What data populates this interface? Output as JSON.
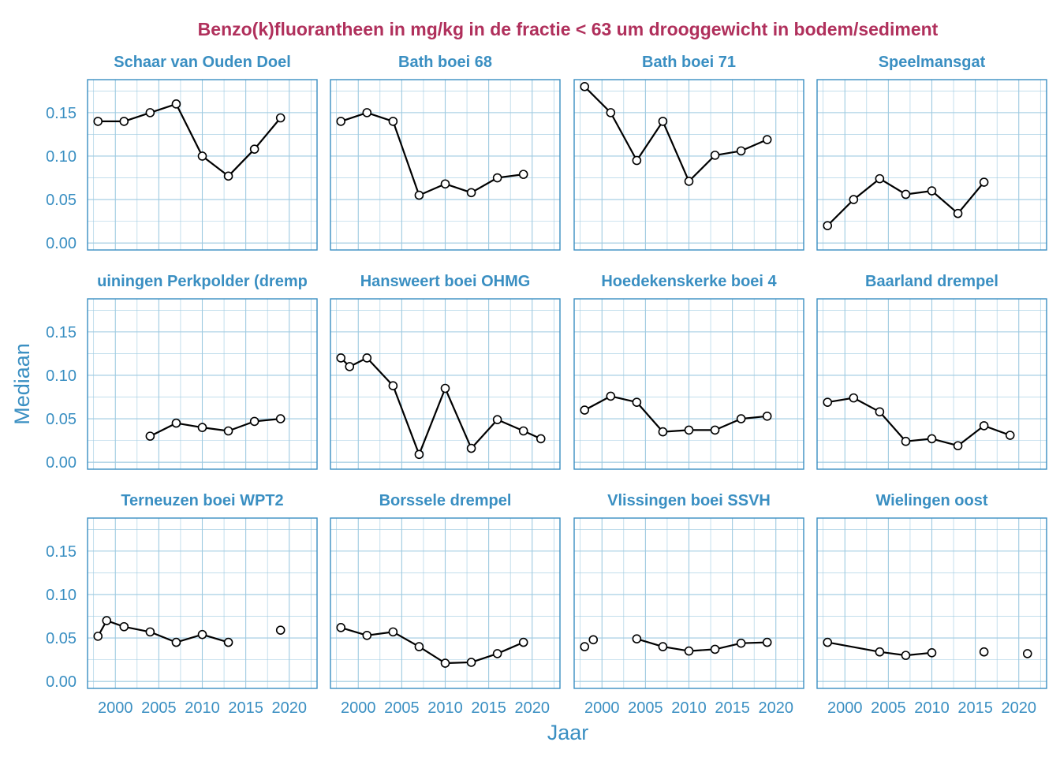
{
  "colors": {
    "title": "#B0305C",
    "accent": "#3A8FC2",
    "panel_border": "#3A8FC2",
    "grid": "#9ECAE1",
    "line": "#000000",
    "point_fill": "#ffffff"
  },
  "chart_data": {
    "type": "line",
    "layout": "facet-grid 3x4",
    "title": "Benzo(k)fluorantheen in mg/kg in de fractie < 63 um drooggewicht in bodem/sediment",
    "xlabel": "Jaar",
    "ylabel": "Mediaan",
    "xlim": [
      1996.8,
      2023.2
    ],
    "ylim": [
      -0.008,
      0.188
    ],
    "x_ticks": [
      2000,
      2005,
      2010,
      2015,
      2020
    ],
    "x_tick_labels": [
      "2000",
      "2005",
      "2010",
      "2015",
      "2020"
    ],
    "y_ticks": [
      0.0,
      0.05,
      0.1,
      0.15
    ],
    "y_tick_labels": [
      "0.00",
      "0.05",
      "0.10",
      "0.15"
    ],
    "grid": true,
    "panels": [
      {
        "title": "Schaar van Ouden Doel",
        "points": [
          [
            1998,
            0.14
          ],
          [
            2001,
            0.14
          ],
          [
            2004,
            0.15
          ],
          [
            2007,
            0.16
          ],
          [
            2010,
            0.1
          ],
          [
            2013,
            0.077
          ],
          [
            2016,
            0.108
          ],
          [
            2019,
            0.144
          ]
        ],
        "segments": [
          [
            0,
            7
          ]
        ]
      },
      {
        "title": "Bath boei 68",
        "points": [
          [
            1998,
            0.14
          ],
          [
            2001,
            0.15
          ],
          [
            2004,
            0.14
          ],
          [
            2007,
            0.055
          ],
          [
            2010,
            0.068
          ],
          [
            2013,
            0.058
          ],
          [
            2016,
            0.075
          ],
          [
            2019,
            0.079
          ]
        ],
        "segments": [
          [
            0,
            7
          ]
        ]
      },
      {
        "title": "Bath boei 71",
        "points": [
          [
            1998,
            0.18
          ],
          [
            2001,
            0.15
          ],
          [
            2004,
            0.095
          ],
          [
            2007,
            0.14
          ],
          [
            2010,
            0.071
          ],
          [
            2013,
            0.101
          ],
          [
            2016,
            0.106
          ],
          [
            2019,
            0.119
          ]
        ],
        "segments": [
          [
            0,
            7
          ]
        ]
      },
      {
        "title": "Speelmansgat",
        "points": [
          [
            1998,
            0.02
          ],
          [
            2001,
            0.05
          ],
          [
            2004,
            0.074
          ],
          [
            2007,
            0.056
          ],
          [
            2010,
            0.06
          ],
          [
            2013,
            0.034
          ],
          [
            2016,
            0.07
          ]
        ],
        "segments": [
          [
            0,
            6
          ]
        ]
      },
      {
        "title": "Hansweert boei OHMG",
        "points": [
          [
            1998,
            0.12
          ],
          [
            1999,
            0.11
          ],
          [
            2001,
            0.12
          ],
          [
            2004,
            0.088
          ],
          [
            2007,
            0.009
          ],
          [
            2010,
            0.085
          ],
          [
            2013,
            0.016
          ],
          [
            2016,
            0.049
          ],
          [
            2019,
            0.036
          ],
          [
            2021,
            0.027
          ]
        ],
        "segments": [
          [
            0,
            9
          ]
        ]
      },
      {
        "title": "Hoedekenskerke boei 4",
        "points": [
          [
            1998,
            0.06
          ],
          [
            2001,
            0.076
          ],
          [
            2004,
            0.069
          ],
          [
            2007,
            0.035
          ],
          [
            2010,
            0.037
          ],
          [
            2013,
            0.037
          ],
          [
            2016,
            0.05
          ],
          [
            2019,
            0.053
          ]
        ],
        "segments": [
          [
            0,
            7
          ]
        ]
      },
      {
        "title": "Baarland drempel",
        "points": [
          [
            1998,
            0.069
          ],
          [
            2001,
            0.074
          ],
          [
            2004,
            0.058
          ],
          [
            2007,
            0.024
          ],
          [
            2010,
            0.027
          ],
          [
            2013,
            0.019
          ],
          [
            2016,
            0.042
          ],
          [
            2019,
            0.031
          ]
        ],
        "segments": [
          [
            0,
            7
          ]
        ]
      },
      {
        "title": "Terneuzen boei WPT2",
        "points": [
          [
            1998,
            0.052
          ],
          [
            1999,
            0.07
          ],
          [
            2001,
            0.063
          ],
          [
            2004,
            0.057
          ],
          [
            2007,
            0.045
          ],
          [
            2010,
            0.054
          ],
          [
            2013,
            0.045
          ],
          [
            2019,
            0.059
          ]
        ],
        "segments": [
          [
            0,
            6
          ]
        ]
      },
      {
        "title": "Borssele drempel",
        "points": [
          [
            1998,
            0.062
          ],
          [
            2001,
            0.053
          ],
          [
            2004,
            0.057
          ],
          [
            2007,
            0.04
          ],
          [
            2010,
            0.021
          ],
          [
            2013,
            0.022
          ],
          [
            2016,
            0.032
          ],
          [
            2019,
            0.045
          ]
        ],
        "segments": [
          [
            0,
            7
          ]
        ]
      },
      {
        "title": "Vlissingen boei SSVH",
        "points": [
          [
            1998,
            0.04
          ],
          [
            1999,
            0.048
          ],
          [
            2004,
            0.049
          ],
          [
            2007,
            0.04
          ],
          [
            2010,
            0.035
          ],
          [
            2013,
            0.037
          ],
          [
            2016,
            0.044
          ],
          [
            2019,
            0.045
          ]
        ],
        "segments": [
          [
            2,
            7
          ]
        ]
      },
      {
        "title": "Wielingen oost",
        "points": [
          [
            1998,
            0.045
          ],
          [
            2004,
            0.034
          ],
          [
            2007,
            0.03
          ],
          [
            2010,
            0.033
          ],
          [
            2016,
            0.034
          ],
          [
            2021,
            0.032
          ]
        ],
        "segments": [
          [
            0,
            3
          ]
        ]
      }
    ],
    "clipped_panel": {
      "title_visible": "uiningen Perkpolder (dremp",
      "points": [
        [
          2004,
          0.03
        ],
        [
          2007,
          0.045
        ],
        [
          2010,
          0.04
        ],
        [
          2013,
          0.036
        ],
        [
          2016,
          0.047
        ],
        [
          2019,
          0.05
        ]
      ],
      "segments": [
        [
          0,
          5
        ]
      ]
    }
  }
}
